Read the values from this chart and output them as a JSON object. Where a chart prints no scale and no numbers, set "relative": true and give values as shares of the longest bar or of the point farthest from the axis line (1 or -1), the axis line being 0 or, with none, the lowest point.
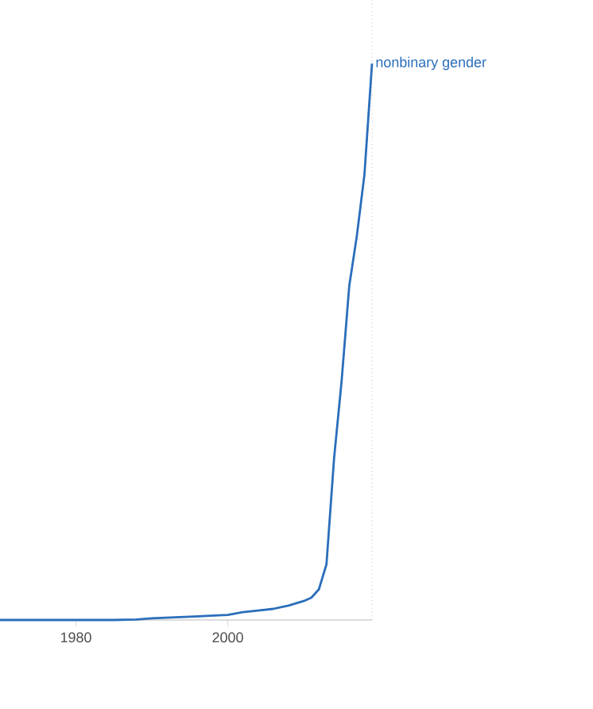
{
  "chart_data": {
    "type": "line",
    "relative": true,
    "x": [
      1970,
      1975,
      1980,
      1985,
      1988,
      1990,
      1995,
      2000,
      2002,
      2004,
      2006,
      2008,
      2010,
      2011,
      2012,
      2013,
      2014,
      2015,
      2016,
      2017,
      2018,
      2019
    ],
    "series": [
      {
        "name": "nonbinary gender",
        "color": "#2a6ebb",
        "values": [
          0,
          0,
          0,
          0,
          0.001,
          0.003,
          0.006,
          0.009,
          0.014,
          0.017,
          0.02,
          0.026,
          0.034,
          0.04,
          0.055,
          0.1,
          0.29,
          0.43,
          0.6,
          0.69,
          0.8,
          1.0
        ]
      }
    ],
    "xlim": [
      1970,
      2019
    ],
    "xticks": [
      1980,
      2000
    ],
    "marker": "none",
    "line_style": "solid",
    "legend": false,
    "ref_lines": [
      {
        "axis": "x",
        "value": 2019,
        "color": "#999999",
        "line_style": "dotted"
      }
    ]
  }
}
